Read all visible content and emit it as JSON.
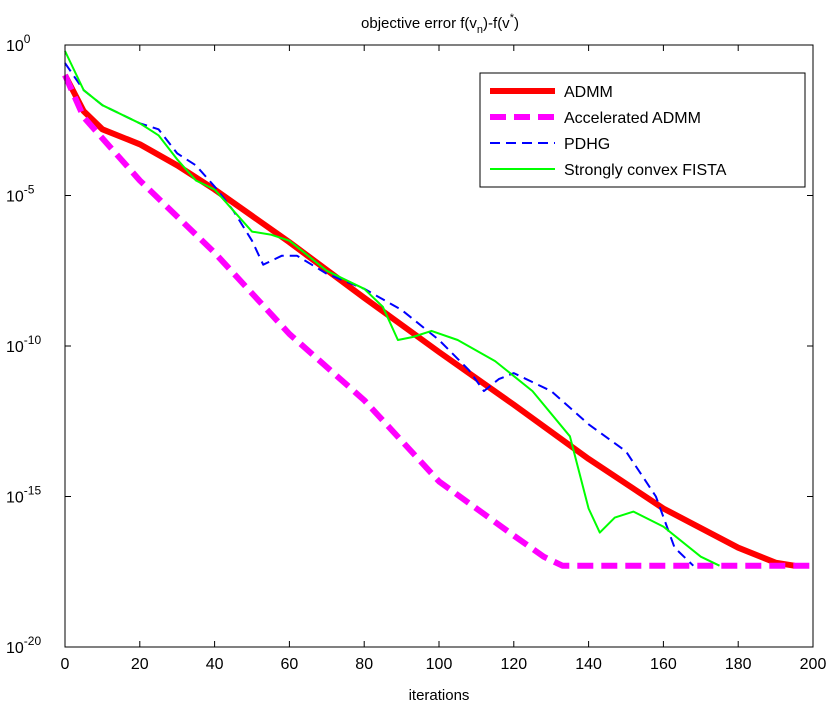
{
  "chart_data": {
    "type": "line",
    "title_prefix": "objective error f(v",
    "title_sub": "n",
    "title_mid": ")-f(v",
    "title_sup": "*",
    "title_suffix": ")",
    "xlabel": "iterations",
    "ylabel": "",
    "xlim": [
      0,
      200
    ],
    "ylim_exp": [
      -20,
      0
    ],
    "log_y": true,
    "xticks": [
      0,
      20,
      40,
      60,
      80,
      100,
      120,
      140,
      160,
      180,
      200
    ],
    "yticks": [
      {
        "base": "10",
        "exp": "0",
        "value": 0
      },
      {
        "base": "10",
        "exp": "-5",
        "value": -5
      },
      {
        "base": "10",
        "exp": "-10",
        "value": -10
      },
      {
        "base": "10",
        "exp": "-15",
        "value": -15
      },
      {
        "base": "10",
        "exp": "-20",
        "value": -20
      }
    ],
    "grid": false,
    "legend_position": "top-right",
    "series": [
      {
        "name": "ADMM",
        "color": "#ff0000",
        "style": "solid-thick",
        "points": [
          [
            0,
            -1
          ],
          [
            5,
            -2.2
          ],
          [
            10,
            -2.8
          ],
          [
            20,
            -3.3
          ],
          [
            30,
            -4.0
          ],
          [
            40,
            -4.8
          ],
          [
            60,
            -6.55
          ],
          [
            80,
            -8.4
          ],
          [
            100,
            -10.2
          ],
          [
            120,
            -11.95
          ],
          [
            140,
            -13.75
          ],
          [
            160,
            -15.4
          ],
          [
            180,
            -16.7
          ],
          [
            190,
            -17.2
          ],
          [
            195,
            -17.3
          ]
        ]
      },
      {
        "name": "Accelerated ADMM",
        "color": "#ff00ff",
        "style": "dashed-thick",
        "points": [
          [
            0,
            -1
          ],
          [
            5,
            -2.4
          ],
          [
            20,
            -4.5
          ],
          [
            40,
            -6.9
          ],
          [
            60,
            -9.6
          ],
          [
            80,
            -11.8
          ],
          [
            100,
            -14.5
          ],
          [
            120,
            -16.3
          ],
          [
            128,
            -17.0
          ],
          [
            133,
            -17.3
          ],
          [
            200,
            -17.3
          ]
        ]
      },
      {
        "name": "PDHG",
        "color": "#0000ff",
        "style": "dashed",
        "points": [
          [
            0,
            -0.6
          ],
          [
            5,
            -1.5
          ],
          [
            10,
            -2.0
          ],
          [
            20,
            -2.6
          ],
          [
            25,
            -2.8
          ],
          [
            30,
            -3.6
          ],
          [
            35,
            -4.0
          ],
          [
            40,
            -4.7
          ],
          [
            45,
            -5.5
          ],
          [
            50,
            -6.5
          ],
          [
            53,
            -7.3
          ],
          [
            58,
            -7.0
          ],
          [
            62,
            -7.0
          ],
          [
            70,
            -7.6
          ],
          [
            80,
            -8.1
          ],
          [
            90,
            -8.8
          ],
          [
            100,
            -9.8
          ],
          [
            108,
            -10.8
          ],
          [
            112,
            -11.5
          ],
          [
            116,
            -11.1
          ],
          [
            120,
            -10.9
          ],
          [
            130,
            -11.5
          ],
          [
            140,
            -12.6
          ],
          [
            150,
            -13.5
          ],
          [
            158,
            -15.0
          ],
          [
            163,
            -16.7
          ],
          [
            168,
            -17.3
          ]
        ]
      },
      {
        "name": "Strongly convex FISTA",
        "color": "#00ff00",
        "style": "solid",
        "points": [
          [
            0,
            -0.2
          ],
          [
            5,
            -1.5
          ],
          [
            10,
            -2.0
          ],
          [
            20,
            -2.6
          ],
          [
            25,
            -3.0
          ],
          [
            30,
            -3.8
          ],
          [
            35,
            -4.5
          ],
          [
            40,
            -4.8
          ],
          [
            45,
            -5.5
          ],
          [
            50,
            -6.2
          ],
          [
            55,
            -6.3
          ],
          [
            60,
            -6.5
          ],
          [
            70,
            -7.5
          ],
          [
            80,
            -8.1
          ],
          [
            85,
            -8.7
          ],
          [
            89,
            -9.8
          ],
          [
            93,
            -9.7
          ],
          [
            98,
            -9.5
          ],
          [
            105,
            -9.8
          ],
          [
            115,
            -10.5
          ],
          [
            125,
            -11.5
          ],
          [
            135,
            -13.0
          ],
          [
            140,
            -15.4
          ],
          [
            143,
            -16.2
          ],
          [
            147,
            -15.7
          ],
          [
            152,
            -15.5
          ],
          [
            160,
            -16.0
          ],
          [
            170,
            -17.0
          ],
          [
            175,
            -17.3
          ]
        ]
      }
    ]
  }
}
